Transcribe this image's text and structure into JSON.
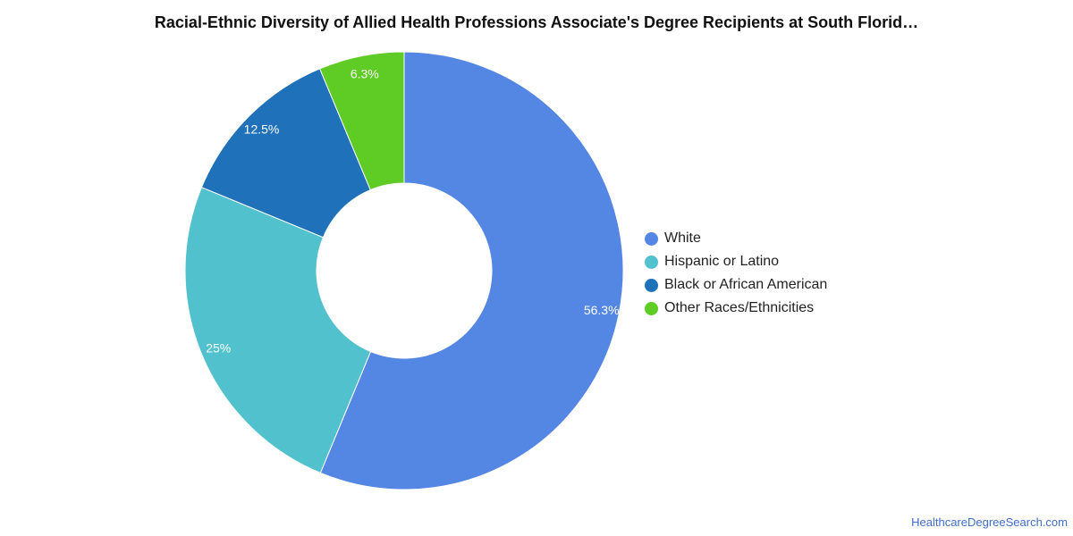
{
  "chart_data": {
    "type": "pie",
    "title": "Racial-Ethnic Diversity of Allied Health Professions Associate's Degree Recipients at South Florid…",
    "donut": true,
    "legend_position": "right",
    "categories": [
      "White",
      "Hispanic or Latino",
      "Black or African American",
      "Other Races/Ethnicities"
    ],
    "values": [
      56.3,
      25,
      12.5,
      6.3
    ],
    "data_labels": [
      "56.3%",
      "25%",
      "12.5%",
      "6.3%"
    ],
    "colors": [
      "#5486e3",
      "#51c1ce",
      "#1f71b9",
      "#5ecc25"
    ]
  },
  "footer": {
    "source": "HealthcareDegreeSearch.com"
  }
}
